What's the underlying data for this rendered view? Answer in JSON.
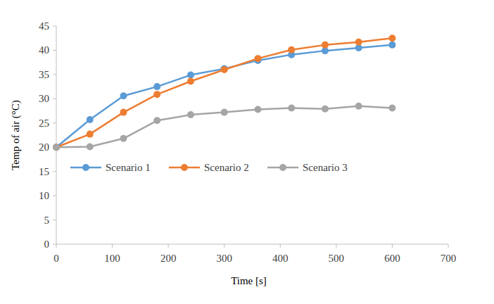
{
  "chart_data": {
    "type": "line",
    "x_label": "Time [s]",
    "y_label": "Temp of air (°C)",
    "x": [
      0,
      60,
      120,
      180,
      240,
      300,
      360,
      420,
      480,
      540,
      600
    ],
    "series": [
      {
        "name": "Scenario 1",
        "color": "#5b9bd5",
        "marker": "circle",
        "values": [
          20,
          25.7,
          30.6,
          32.5,
          34.9,
          36.2,
          37.9,
          39.1,
          39.9,
          40.5,
          41.1
        ]
      },
      {
        "name": "Scenario 2",
        "color": "#ed7d31",
        "marker": "circle",
        "values": [
          20,
          22.7,
          27.2,
          30.9,
          33.6,
          36.0,
          38.3,
          40.1,
          41.1,
          41.7,
          42.5
        ]
      },
      {
        "name": "Scenario 3",
        "color": "#a5a5a5",
        "marker": "circle",
        "values": [
          20,
          20.1,
          21.8,
          25.5,
          26.7,
          27.2,
          27.8,
          28.1,
          27.9,
          28.5,
          28.1
        ]
      }
    ],
    "xlim": [
      0,
      700
    ],
    "xticks": [
      0,
      100,
      200,
      300,
      400,
      500,
      600,
      700
    ],
    "ylim": [
      0,
      45
    ],
    "yticks": [
      0,
      5,
      10,
      15,
      20,
      25,
      30,
      35,
      40,
      45
    ],
    "grid": false,
    "legend": "left"
  }
}
